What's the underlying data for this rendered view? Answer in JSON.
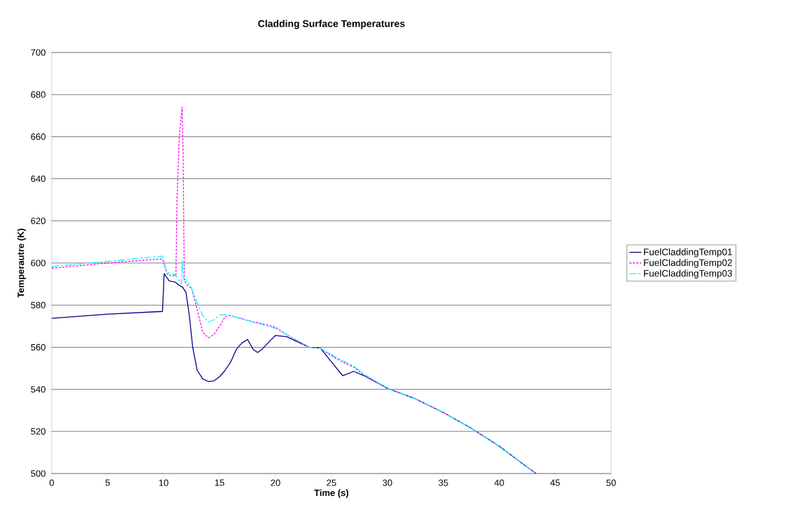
{
  "chart_data": {
    "type": "line",
    "title": "Cladding Surface Temperatures",
    "xlabel": "Time (s)",
    "ylabel": "Temperautre (K)",
    "xlim": [
      0,
      50
    ],
    "xticks": [
      0,
      5,
      10,
      15,
      20,
      25,
      30,
      35,
      40,
      45,
      50
    ],
    "ylim": [
      500,
      700
    ],
    "yticks": [
      500,
      520,
      540,
      560,
      580,
      600,
      620,
      640,
      660,
      680,
      700
    ],
    "grid": "y",
    "legend": "right",
    "series": [
      {
        "name": "FuelCladdingTemp01",
        "color": "#000080",
        "line_style": "solid",
        "x": [
          0,
          5,
          9.9,
          10.05,
          10.5,
          11,
          11.5,
          11.7,
          12,
          12.3,
          12.6,
          13,
          13.5,
          14,
          14.5,
          15,
          15.5,
          16,
          16.5,
          17,
          17.5,
          18,
          18.4,
          18.8,
          19.5,
          20,
          21,
          22,
          23,
          24,
          25,
          26,
          27,
          28,
          30,
          32.5,
          35,
          37.5,
          40,
          42,
          43.3
        ],
        "values": [
          573.7,
          575.7,
          577,
          595,
          591.5,
          591,
          589,
          588.5,
          586,
          575,
          560,
          549,
          545,
          543.7,
          544,
          546,
          549,
          553,
          559,
          562,
          563.7,
          559,
          557.5,
          559,
          563,
          565.6,
          565,
          562.5,
          560,
          559.7,
          553,
          546.5,
          548.5,
          546.3,
          540.5,
          535.5,
          529,
          521.5,
          513,
          505,
          500
        ]
      },
      {
        "name": "FuelCladdingTemp02",
        "color": "#ff00ff",
        "line_style": "dotted",
        "x": [
          0,
          5,
          9.9,
          10.3,
          10.6,
          11.1,
          11.2,
          11.4,
          11.65,
          11.75,
          11.8,
          11.85,
          12,
          12.5,
          13,
          13.5,
          14,
          14.5,
          15,
          15.5,
          16,
          17,
          18,
          19,
          20,
          21,
          22,
          23,
          24,
          25,
          26,
          27,
          28,
          30,
          32.5,
          35,
          37.5,
          40,
          42,
          43.3
        ],
        "values": [
          597.5,
          600,
          602,
          595,
          594,
          594,
          630,
          660,
          674,
          650,
          620,
          592,
          590,
          588,
          578,
          567,
          564.5,
          566,
          570,
          574.5,
          575,
          573.5,
          572,
          571,
          569.5,
          566,
          563,
          560,
          559.5,
          556,
          553,
          550.5,
          546.5,
          540.5,
          535.5,
          529,
          521.5,
          513,
          505,
          500
        ]
      },
      {
        "name": "FuelCladdingTemp03",
        "color": "#00ffff",
        "line_style": "dashed",
        "x": [
          0,
          5,
          9.9,
          10.2,
          10.5,
          11,
          11.5,
          11.6,
          11.65,
          11.75,
          12,
          12.5,
          13,
          13.5,
          14,
          14.5,
          15,
          15.5,
          16,
          17,
          18,
          19,
          20,
          21,
          22,
          23,
          24,
          25,
          26,
          27,
          28,
          30,
          32.5,
          35,
          37.5,
          40,
          42,
          43.3
        ],
        "values": [
          598.3,
          600.8,
          603.3,
          597,
          595,
          594.5,
          591,
          590,
          601,
          593,
          592,
          588,
          581,
          575,
          572,
          573,
          575.3,
          575.5,
          575,
          573.5,
          572,
          570.5,
          569,
          566,
          563,
          560,
          559.5,
          556.5,
          553.5,
          551,
          546.8,
          540.5,
          535.5,
          529,
          521.5,
          513,
          505,
          500
        ]
      }
    ]
  }
}
